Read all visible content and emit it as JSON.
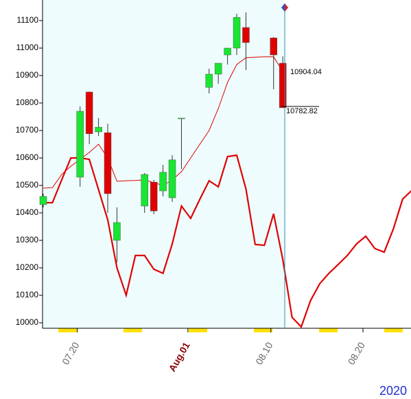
{
  "chart_data": {
    "type": "candlestick",
    "categories": [
      null,
      null,
      null,
      null,
      "07.20",
      null,
      null,
      null,
      null,
      null,
      null,
      null,
      null,
      null,
      null,
      null,
      "Aug.01",
      null,
      null,
      null,
      null,
      null,
      null,
      null,
      null,
      "08.10",
      null,
      null,
      null,
      null,
      null,
      null,
      null,
      null,
      null,
      "08.20",
      null,
      null,
      null,
      null,
      null
    ],
    "open": [
      10430,
      null,
      null,
      null,
      10530,
      10840,
      10695,
      10692,
      10300,
      null,
      null,
      10425,
      10512,
      10480,
      10455,
      10745,
      null,
      null,
      10857,
      10905,
      10975,
      11000,
      11075,
      null,
      null,
      11037,
      10945,
      null,
      null,
      null,
      null,
      null,
      null,
      null,
      null,
      null,
      null,
      null,
      null,
      null,
      null
    ],
    "high": [
      10470,
      null,
      null,
      null,
      10788,
      10842,
      10745,
      10725,
      10420,
      null,
      null,
      10545,
      10520,
      10575,
      10610,
      10745,
      null,
      null,
      10925,
      10945,
      11000,
      11125,
      11130,
      null,
      null,
      11040,
      10970,
      null,
      null,
      null,
      null,
      null,
      null,
      null,
      null,
      null,
      null,
      null,
      null,
      null,
      null
    ],
    "low": [
      10420,
      null,
      null,
      null,
      10495,
      10650,
      10680,
      10400,
      10220,
      null,
      null,
      10400,
      10395,
      10460,
      10440,
      10560,
      null,
      null,
      10835,
      10870,
      10940,
      10975,
      10920,
      null,
      null,
      10850,
      10782.82,
      null,
      null,
      null,
      null,
      null,
      null,
      null,
      null,
      null,
      null,
      null,
      null,
      null,
      null
    ],
    "close": [
      10460,
      null,
      null,
      null,
      10770,
      10688,
      10712,
      10470,
      10365,
      null,
      null,
      10540,
      10407,
      10548,
      10593,
      10745,
      null,
      null,
      10905,
      10945,
      11000,
      11112,
      11020,
      null,
      null,
      10975,
      10782.82,
      null,
      null,
      null,
      null,
      null,
      null,
      null,
      null,
      null,
      null,
      null,
      null,
      null,
      null
    ],
    "up_color": "#19e632",
    "down_color": "#e00000",
    "series": [
      {
        "color": "#e00000",
        "values": [
          10490,
          10492,
          10540,
          10570,
          10595,
          10620,
          10650,
          10600,
          10515,
          10517,
          10518,
          10520,
          10510,
          10500,
          10520,
          10550,
          10600,
          10650,
          10700,
          10780,
          10875,
          10940,
          10965,
          10967,
          10968,
          10968,
          10915,
          null,
          null,
          null,
          null,
          null,
          null,
          null,
          null,
          null,
          null,
          null,
          null,
          null,
          null
        ]
      },
      {
        "color": "#e00000",
        "values": [
          10437,
          10437,
          10520,
          10600,
          10600,
          10595,
          10485,
          10375,
          10200,
          10100,
          10245,
          10245,
          10195,
          10180,
          10287,
          10425,
          10380,
          10450,
          10517,
          10495,
          10605,
          10610,
          10487,
          10285,
          10282,
          10397,
          10230,
          10020,
          9985,
          10080,
          10142,
          10180,
          10212,
          10245,
          10287,
          10315,
          10270,
          10257,
          10342,
          10450,
          10482
        ]
      }
    ],
    "ylim": [
      9980,
      11175
    ],
    "yticks": [
      10000,
      10100,
      10200,
      10300,
      10400,
      10500,
      10600,
      10700,
      10800,
      10900,
      11000,
      11100
    ],
    "annotations": [
      "10904.04",
      "10782.82"
    ],
    "corner_label": "2020"
  }
}
